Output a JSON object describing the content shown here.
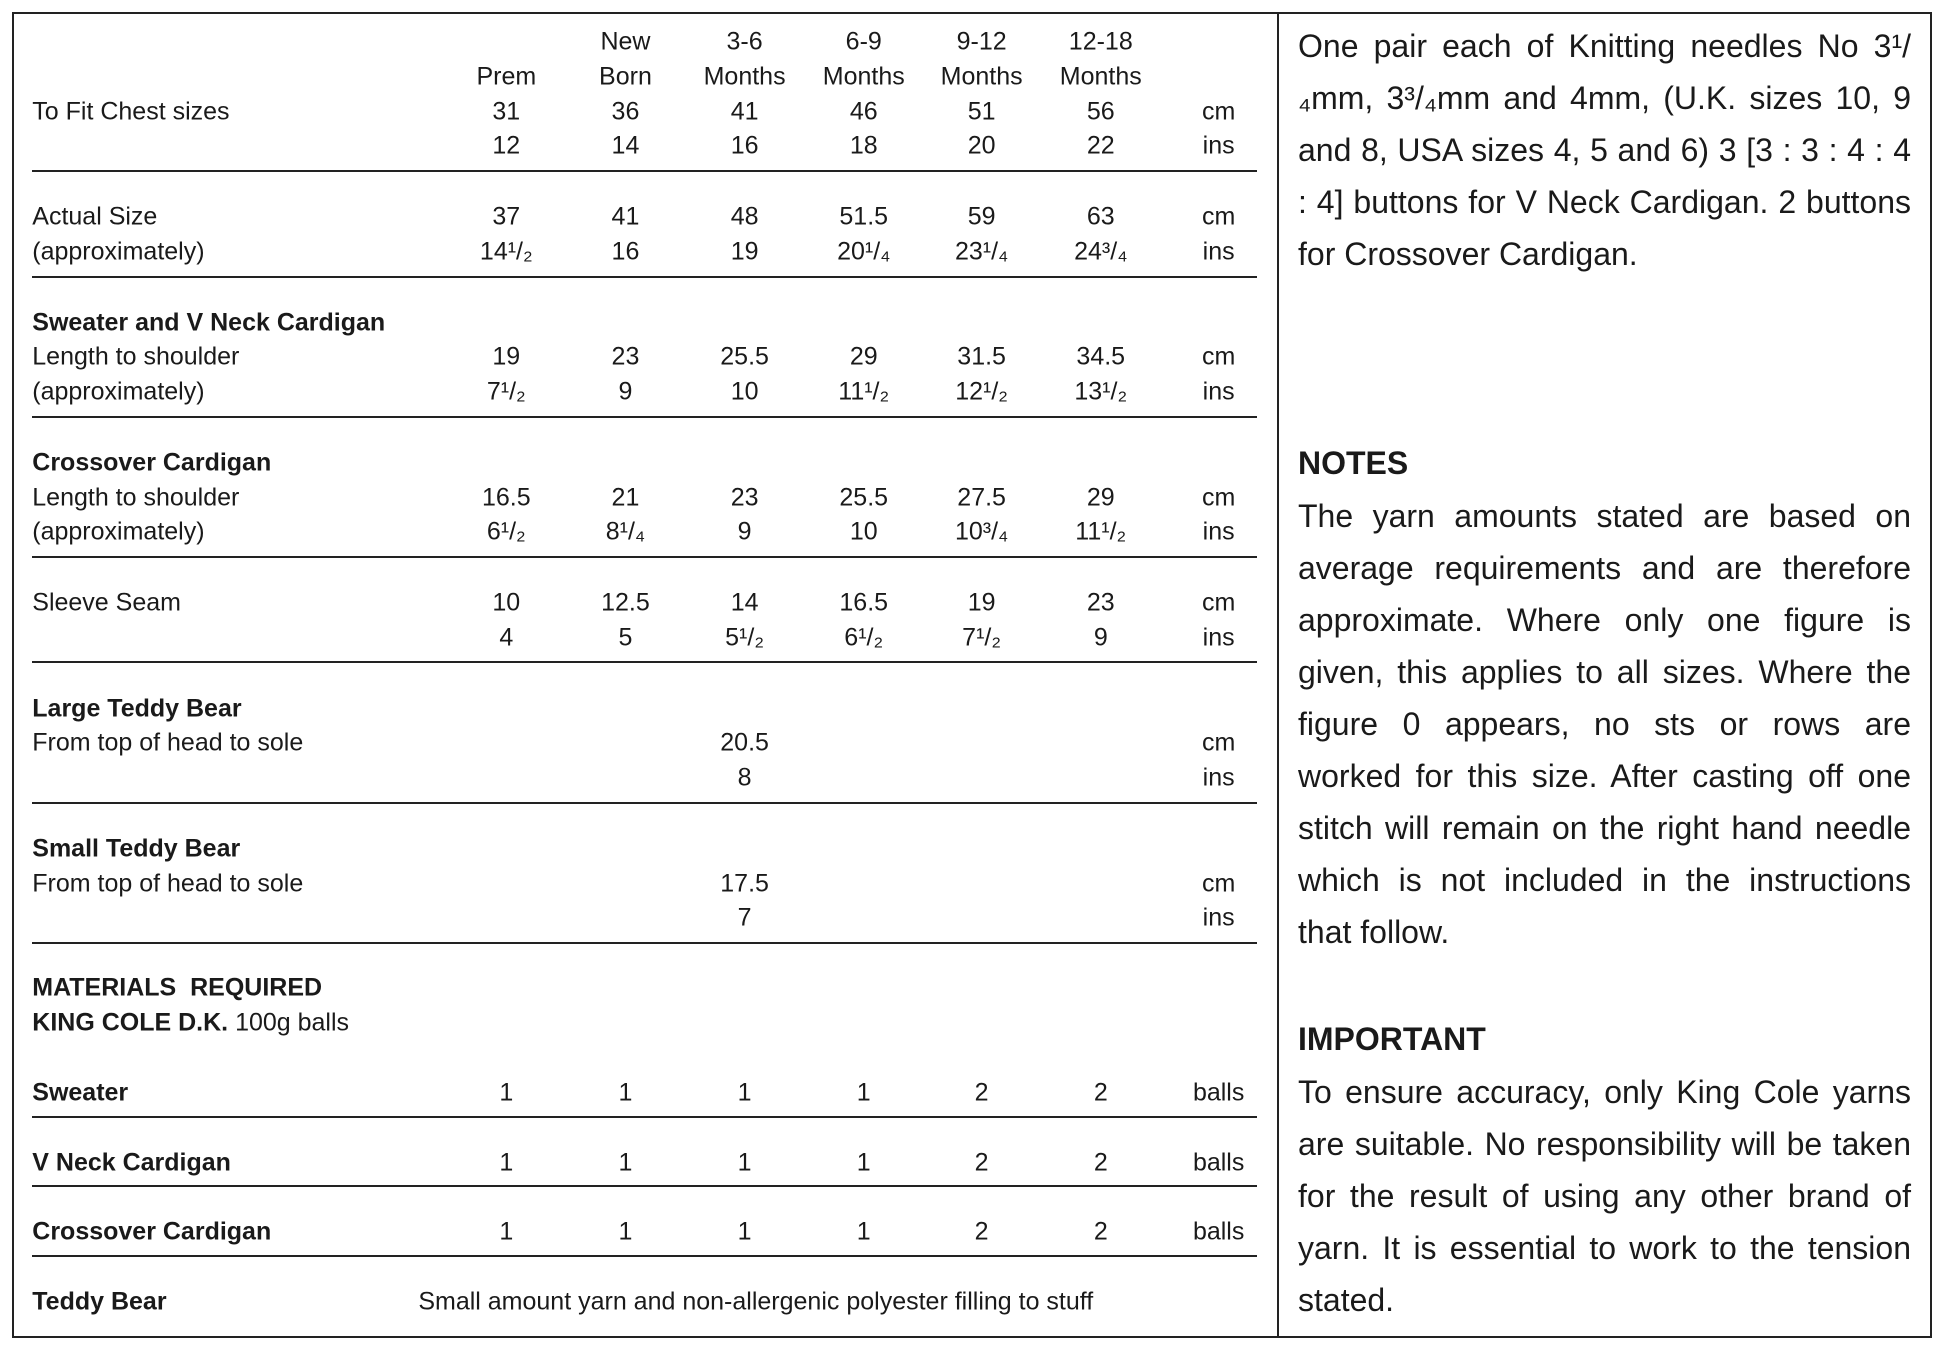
{
  "sizes_table": {
    "sizes": [
      [
        "Prem"
      ],
      [
        "New",
        "Born"
      ],
      [
        "3-6",
        "Months"
      ],
      [
        "6-9",
        "Months"
      ],
      [
        "9-12",
        "Months"
      ],
      [
        "12-18",
        "Months"
      ]
    ],
    "sections": [
      {
        "rows": [
          {
            "label": "To Fit Chest sizes",
            "values": [
              "31",
              "36",
              "41",
              "46",
              "51",
              "56"
            ],
            "unit": "cm"
          },
          {
            "values": [
              "12",
              "14",
              "16",
              "18",
              "20",
              "22"
            ],
            "unit": "ins"
          }
        ]
      },
      {
        "rows": [
          {
            "label": "Actual Size",
            "values": [
              "37",
              "41",
              "48",
              "51.5",
              "59",
              "63"
            ],
            "unit": "cm"
          },
          {
            "label": "(approximately)",
            "values": [
              "14¹/₂",
              "16",
              "19",
              "20¹/₄",
              "23¹/₄",
              "24³/₄"
            ],
            "unit": "ins"
          }
        ]
      },
      {
        "heading": "Sweater and V Neck Cardigan",
        "rows": [
          {
            "label": "Length to shoulder",
            "values": [
              "19",
              "23",
              "25.5",
              "29",
              "31.5",
              "34.5"
            ],
            "unit": "cm"
          },
          {
            "label": "(approximately)",
            "values": [
              "7¹/₂",
              "9",
              "10",
              "11¹/₂",
              "12¹/₂",
              "13¹/₂"
            ],
            "unit": "ins"
          }
        ]
      },
      {
        "heading": "Crossover Cardigan",
        "rows": [
          {
            "label": "Length to shoulder",
            "values": [
              "16.5",
              "21",
              "23",
              "25.5",
              "27.5",
              "29"
            ],
            "unit": "cm"
          },
          {
            "label": "(approximately)",
            "values": [
              "6¹/₂",
              "8¹/₄",
              "9",
              "10",
              "10³/₄",
              "11¹/₂"
            ],
            "unit": "ins"
          }
        ]
      },
      {
        "rows": [
          {
            "label": "Sleeve Seam",
            "values": [
              "10",
              "12.5",
              "14",
              "16.5",
              "19",
              "23"
            ],
            "unit": "cm"
          },
          {
            "values": [
              "4",
              "5",
              "5¹/₂",
              "6¹/₂",
              "7¹/₂",
              "9"
            ],
            "unit": "ins"
          }
        ]
      },
      {
        "heading": "Large Teddy Bear",
        "rows": [
          {
            "label": "From top of head to sole",
            "value": "20.5",
            "unit": "cm"
          },
          {
            "value": "8",
            "unit": "ins"
          }
        ]
      },
      {
        "heading": "Small Teddy Bear",
        "rows": [
          {
            "label": "From top of head to sole",
            "value": "17.5",
            "unit": "cm"
          },
          {
            "value": "7",
            "unit": "ins"
          }
        ]
      }
    ]
  },
  "materials": {
    "title": "MATERIALS  REQUIRED",
    "yarn": "KING COLE D.K.",
    "yarn_note": "100g balls",
    "items": [
      {
        "name": "Sweater",
        "values": [
          "1",
          "1",
          "1",
          "1",
          "2",
          "2"
        ],
        "unit": "balls"
      },
      {
        "name": "V Neck Cardigan",
        "values": [
          "1",
          "1",
          "1",
          "1",
          "2",
          "2"
        ],
        "unit": "balls"
      },
      {
        "name": "Crossover Cardigan",
        "values": [
          "1",
          "1",
          "1",
          "1",
          "2",
          "2"
        ],
        "unit": "balls"
      },
      {
        "name": "Teddy Bear",
        "note": "Small amount yarn and non-allergenic polyester filling to stuff"
      }
    ]
  },
  "needles": "One pair each of Knitting needles No 3¹/₄mm, 3³/₄mm and 4mm, (U.K. sizes 10, 9 and 8, USA sizes 4, 5 and 6) 3 [3 : 3 : 4 : 4 : 4] buttons for V Neck Cardigan. 2 buttons for Crossover Cardigan.",
  "notes": {
    "heading": "NOTES",
    "text": "The yarn amounts stated are based on average requirements and are therefore approximate. Where only one figure is given, this applies to all sizes. Where the figure 0 appears, no sts or rows are worked for this size. After casting off one stitch will remain on the right hand needle which is not included in the instructions that follow."
  },
  "important": {
    "heading": "IMPORTANT",
    "text": "To ensure accuracy, only King Cole yarns are suitable. No responsibility will be taken for the result of using any other brand of yarn. It is essential to work to the tension stated."
  }
}
